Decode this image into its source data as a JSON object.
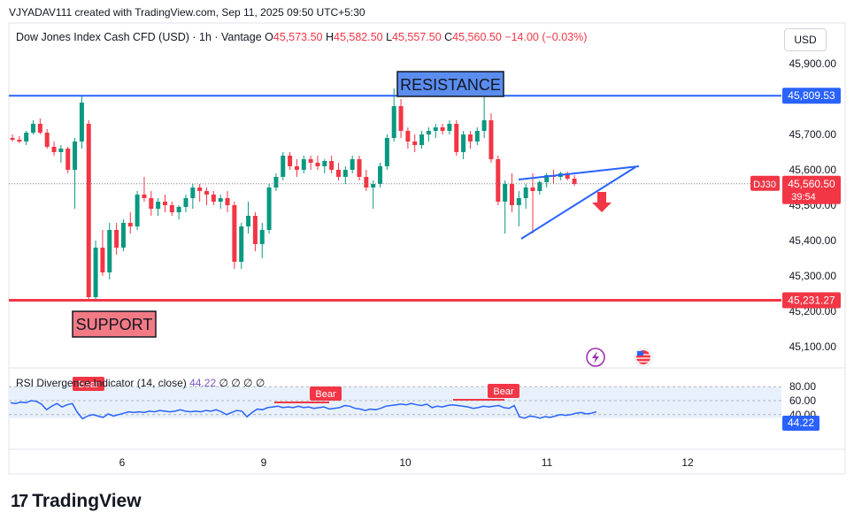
{
  "header": {
    "attribution": "VJYADAV111 created with TradingView.com, Sep 11, 2025 09:50 UTC+5:30"
  },
  "legend": {
    "symbol": "Dow Jones Index Cash CFD (USD) · 1h · Vantage",
    "o_label": "O",
    "o_value": "45,573.50",
    "h_label": "H",
    "h_value": "45,582.50",
    "l_label": "L",
    "l_value": "45,557.50",
    "c_label": "C",
    "c_value": "45,560.50",
    "change": "−14.00 (−0.03%)"
  },
  "currency_button": "USD",
  "annotations": {
    "resistance": "RESISTANCE",
    "support": "SUPPORT",
    "resistance_price": "45,809.53",
    "support_price": "45,231.27",
    "symbol_tag": "DJ30",
    "last_price": "45,560.50",
    "countdown": "39:54"
  },
  "rsi": {
    "title": "RSI Divergence Indicator (14, close)",
    "value": "44.22",
    "trailing": "∅ ∅ ∅ ∅",
    "bear_label": "Bear",
    "current_tag": "44.22",
    "levels": [
      80,
      60,
      40
    ],
    "level_labels": [
      "80.00",
      "60.00",
      "40.00"
    ],
    "values": [
      57,
      56,
      58,
      57,
      60,
      59,
      55,
      47,
      52,
      56,
      51,
      54,
      56,
      43,
      34,
      38,
      40,
      38,
      36,
      41,
      38,
      40,
      42,
      44,
      43,
      44,
      43,
      45,
      44,
      46,
      45,
      44,
      45,
      47,
      45,
      44,
      45,
      44,
      46,
      45,
      47,
      44,
      40,
      43,
      46,
      45,
      37,
      43,
      48,
      47,
      50,
      51,
      52,
      50,
      51,
      50,
      52,
      50,
      51,
      49,
      50,
      51,
      48,
      49,
      50,
      53,
      52,
      49,
      48,
      46,
      48,
      47,
      49,
      52,
      53,
      54,
      55,
      54,
      56,
      54,
      53,
      55,
      50,
      52,
      51,
      53,
      54,
      53,
      52,
      51,
      49,
      50,
      52,
      51,
      52,
      53,
      50,
      49,
      53,
      37,
      35,
      38,
      37,
      35,
      37,
      36,
      38,
      40,
      39,
      40,
      42,
      43,
      41,
      42,
      44
    ]
  },
  "brand": "TradingView",
  "chart_data": {
    "type": "candlestick",
    "title": "Dow Jones Index Cash CFD (USD) · 1h · Vantage",
    "x_ticks": [
      "6",
      "9",
      "10",
      "11",
      "12"
    ],
    "ylim": [
      45050,
      45960
    ],
    "y_ticks": [
      45100,
      45200,
      45300,
      45400,
      45500,
      45600,
      45700,
      45800,
      45900
    ],
    "y_tick_labels": [
      "45,100.00",
      "45,200.00",
      "45,300.00",
      "45,400.00",
      "45,500.00",
      "45,600.00",
      "45,700.00",
      "45,800.00",
      "45,900.00"
    ],
    "resistance": 45809.53,
    "support": 45231.27,
    "last": 45560.5,
    "colors": {
      "up": "#089981",
      "down": "#f23645",
      "resistance": "#2962ff",
      "support": "#f23645",
      "trend": "#2962ff"
    },
    "candles": [
      [
        45690,
        45700,
        45680,
        45685
      ],
      [
        45685,
        45695,
        45675,
        45680
      ],
      [
        45680,
        45710,
        45670,
        45705
      ],
      [
        45705,
        45740,
        45700,
        45730
      ],
      [
        45730,
        45745,
        45700,
        45705
      ],
      [
        45705,
        45715,
        45660,
        45665
      ],
      [
        45665,
        45680,
        45640,
        45650
      ],
      [
        45650,
        45670,
        45620,
        45660
      ],
      [
        45660,
        45665,
        45590,
        45600
      ],
      [
        45600,
        45690,
        45490,
        45680
      ],
      [
        45680,
        45810,
        45660,
        45790
      ],
      [
        45730,
        45740,
        45230,
        45240
      ],
      [
        45240,
        45400,
        45230,
        45380
      ],
      [
        45380,
        45430,
        45300,
        45310
      ],
      [
        45310,
        45450,
        45290,
        45430
      ],
      [
        45430,
        45450,
        45360,
        45380
      ],
      [
        45380,
        45460,
        45370,
        45450
      ],
      [
        45450,
        45480,
        45420,
        45440
      ],
      [
        45440,
        45540,
        45430,
        45530
      ],
      [
        45530,
        45580,
        45510,
        45520
      ],
      [
        45520,
        45540,
        45470,
        45490
      ],
      [
        45490,
        45520,
        45470,
        45510
      ],
      [
        45510,
        45530,
        45480,
        45500
      ],
      [
        45500,
        45510,
        45470,
        45480
      ],
      [
        45480,
        45500,
        45460,
        45495
      ],
      [
        45495,
        45530,
        45480,
        45520
      ],
      [
        45520,
        45560,
        45490,
        45550
      ],
      [
        45550,
        45560,
        45510,
        45540
      ],
      [
        45540,
        45550,
        45500,
        45530
      ],
      [
        45530,
        45540,
        45500,
        45510
      ],
      [
        45510,
        45530,
        45490,
        45520
      ],
      [
        45520,
        45540,
        45480,
        45500
      ],
      [
        45500,
        45510,
        45320,
        45340
      ],
      [
        45340,
        45450,
        45320,
        45440
      ],
      [
        45440,
        45510,
        45420,
        45470
      ],
      [
        45470,
        45480,
        45370,
        45390
      ],
      [
        45390,
        45450,
        45350,
        45430
      ],
      [
        45430,
        45560,
        45420,
        45550
      ],
      [
        45550,
        45590,
        45540,
        45580
      ],
      [
        45580,
        45650,
        45570,
        45640
      ],
      [
        45640,
        45650,
        45600,
        45610
      ],
      [
        45610,
        45630,
        45580,
        45600
      ],
      [
        45600,
        45640,
        45590,
        45630
      ],
      [
        45630,
        45640,
        45600,
        45620
      ],
      [
        45620,
        45640,
        45600,
        45610
      ],
      [
        45610,
        45630,
        45590,
        45625
      ],
      [
        45625,
        45640,
        45590,
        45600
      ],
      [
        45600,
        45620,
        45570,
        45580
      ],
      [
        45580,
        45610,
        45560,
        45600
      ],
      [
        45600,
        45640,
        45590,
        45630
      ],
      [
        45630,
        45640,
        45570,
        45580
      ],
      [
        45580,
        45600,
        45540,
        45550
      ],
      [
        45550,
        45570,
        45490,
        45560
      ],
      [
        45560,
        45620,
        45550,
        45610
      ],
      [
        45610,
        45700,
        45600,
        45690
      ],
      [
        45690,
        45830,
        45680,
        45780
      ],
      [
        45780,
        45800,
        45690,
        45710
      ],
      [
        45710,
        45720,
        45660,
        45680
      ],
      [
        45680,
        45700,
        45650,
        45670
      ],
      [
        45670,
        45710,
        45660,
        45700
      ],
      [
        45700,
        45720,
        45680,
        45710
      ],
      [
        45710,
        45730,
        45690,
        45720
      ],
      [
        45720,
        45730,
        45700,
        45710
      ],
      [
        45710,
        45740,
        45700,
        45730
      ],
      [
        45730,
        45740,
        45640,
        45650
      ],
      [
        45650,
        45710,
        45630,
        45700
      ],
      [
        45700,
        45710,
        45660,
        45680
      ],
      [
        45680,
        45720,
        45670,
        45710
      ],
      [
        45710,
        45830,
        45690,
        45740
      ],
      [
        45740,
        45760,
        45620,
        45630
      ],
      [
        45630,
        45640,
        45500,
        45510
      ],
      [
        45510,
        45570,
        45420,
        45560
      ],
      [
        45560,
        45590,
        45480,
        45500
      ],
      [
        45500,
        45540,
        45440,
        45520
      ],
      [
        45520,
        45560,
        45490,
        45550
      ],
      [
        45550,
        45590,
        45420,
        45540
      ],
      [
        45540,
        45570,
        45530,
        45565
      ],
      [
        45565,
        45590,
        45550,
        45585
      ],
      [
        45585,
        45600,
        45560,
        45580
      ],
      [
        45580,
        45595,
        45570,
        45590
      ],
      [
        45590,
        45595,
        45570,
        45575
      ],
      [
        45575,
        45585,
        45555,
        45560
      ]
    ]
  }
}
